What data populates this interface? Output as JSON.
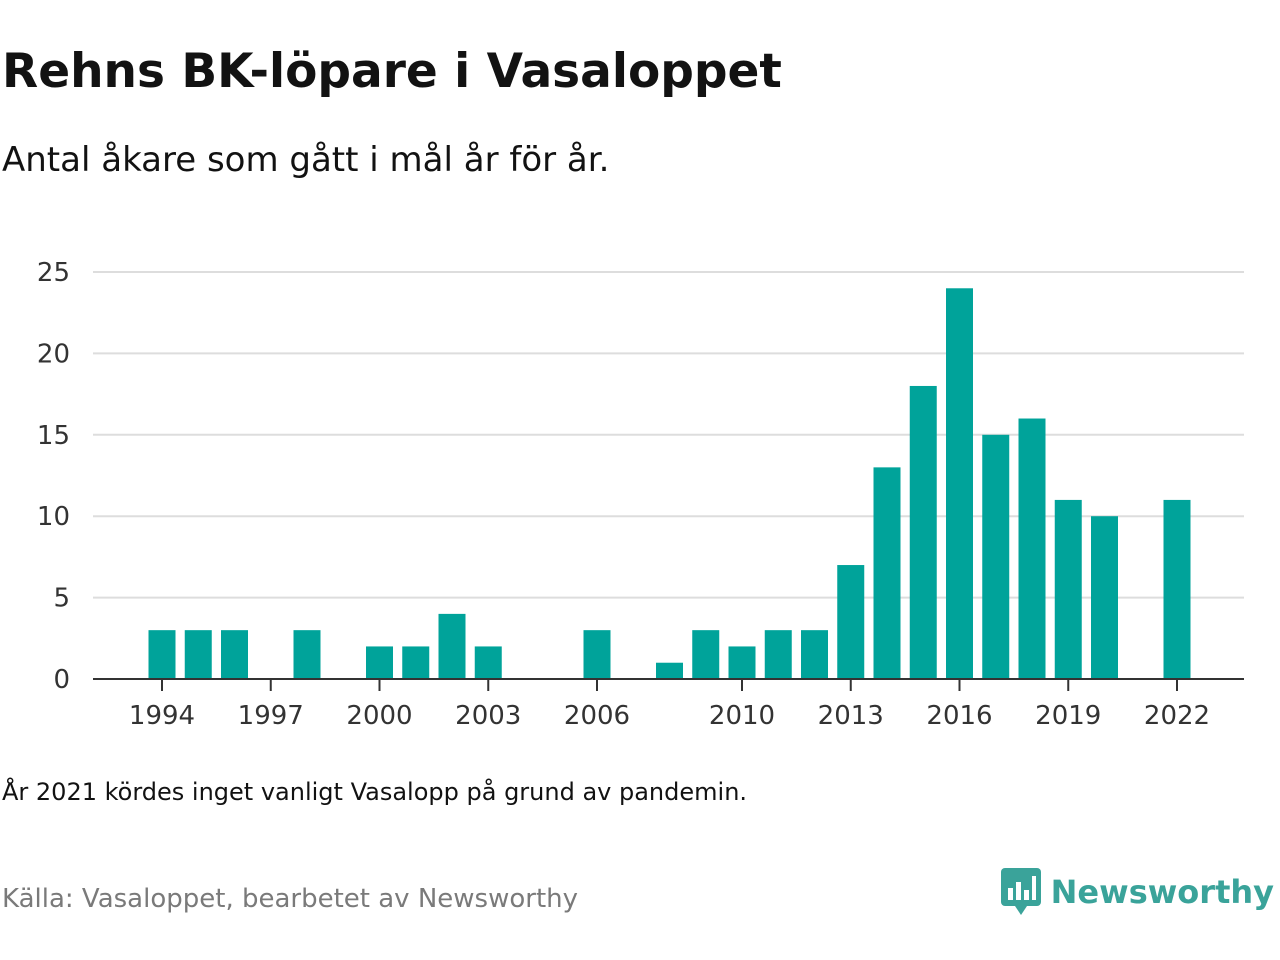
{
  "header": {
    "title": "Rehns BK-löpare i Vasaloppet",
    "subtitle": "Antal åkare som gått i mål år för år."
  },
  "footer": {
    "note": "År 2021 kördes inget vanligt Vasalopp på grund av pandemin.",
    "source": "Källa: Vasaloppet, bearbetet av Newsworthy",
    "brand_name": "Newsworthy",
    "brand_icon": "bar-chart-speech-bubble-icon"
  },
  "colors": {
    "bar": "#00a39a",
    "grid": "#dddddd",
    "axis": "#333333",
    "brand": "#3aa39a"
  },
  "chart_data": {
    "type": "bar",
    "x": [
      1994,
      1995,
      1996,
      1997,
      1998,
      1999,
      2000,
      2001,
      2002,
      2003,
      2004,
      2005,
      2006,
      2007,
      2008,
      2009,
      2010,
      2011,
      2012,
      2013,
      2014,
      2015,
      2016,
      2017,
      2018,
      2019,
      2020,
      2021,
      2022
    ],
    "values": [
      3,
      3,
      3,
      0,
      3,
      0,
      2,
      2,
      4,
      2,
      0,
      0,
      3,
      0,
      1,
      3,
      2,
      3,
      3,
      7,
      13,
      18,
      24,
      15,
      16,
      11,
      10,
      0,
      11
    ],
    "xticks": [
      "1994",
      "1997",
      "2000",
      "2003",
      "2006",
      "2010",
      "2013",
      "2016",
      "2019",
      "2022"
    ],
    "yticks": [
      "0",
      "5",
      "10",
      "15",
      "20",
      "25"
    ],
    "ylim": [
      0,
      25
    ],
    "grid": true,
    "legend": false
  }
}
